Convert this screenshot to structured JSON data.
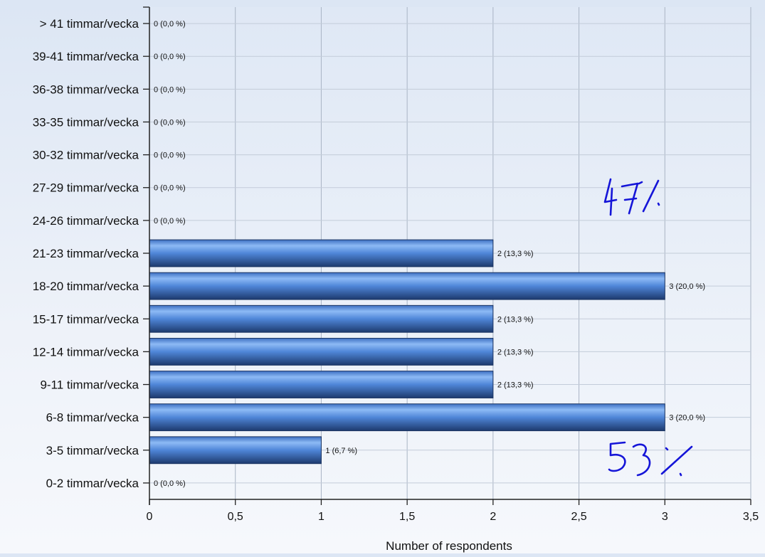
{
  "chart_data": {
    "type": "bar",
    "orientation": "horizontal",
    "categories": [
      "0-2 timmar/vecka",
      "3-5 timmar/vecka",
      "6-8 timmar/vecka",
      "9-11 timmar/vecka",
      "12-14 timmar/vecka",
      "15-17 timmar/vecka",
      "18-20 timmar/vecka",
      "21-23 timmar/vecka",
      "24-26 timmar/vecka",
      "27-29 timmar/vecka",
      "30-32 timmar/vecka",
      "33-35 timmar/vecka",
      "36-38 timmar/vecka",
      "39-41 timmar/vecka",
      "> 41 timmar/vecka"
    ],
    "values": [
      0,
      1,
      3,
      2,
      2,
      2,
      3,
      2,
      0,
      0,
      0,
      0,
      0,
      0,
      0
    ],
    "data_labels": [
      "0 (0,0 %)",
      "1 (6,7 %)",
      "3 (20,0 %)",
      "2 (13,3 %)",
      "2 (13,3 %)",
      "2 (13,3 %)",
      "3 (20,0 %)",
      "2 (13,3 %)",
      "0 (0,0 %)",
      "0 (0,0 %)",
      "0 (0,0 %)",
      "0 (0,0 %)",
      "0 (0,0 %)",
      "0 (0,0 %)",
      "0 (0,0 %)"
    ],
    "xlabel": "Number of respondents",
    "xlim": [
      0,
      3.5
    ],
    "xticks": [
      0,
      0.5,
      1,
      1.5,
      2,
      2.5,
      3,
      3.5
    ],
    "xtick_labels": [
      "0",
      "0,5",
      "1",
      "1,5",
      "2",
      "2,5",
      "3",
      "3,5"
    ],
    "grid": true,
    "bar_color": "#4a7fd0",
    "handwritten_annotations": [
      "47%",
      "53%"
    ]
  }
}
